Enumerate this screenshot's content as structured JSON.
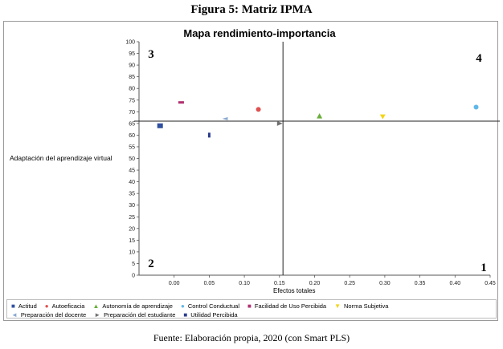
{
  "figure_title": "Figura 5: Matriz IPMA",
  "caption": "Fuente: Elaboración propia, 2020 (con Smart PLS)",
  "quadrants": [
    "3",
    "4",
    "2",
    "1"
  ],
  "chart_data": {
    "type": "scatter",
    "title": "Mapa rendimiento-importancia",
    "xlabel": "Efectos totales",
    "ylabel": "Adaptación del aprendizaje virtual",
    "xlim": [
      -0.05,
      0.45
    ],
    "ylim": [
      0,
      100
    ],
    "x_ticks": [
      "0.00",
      "0.05",
      "0.10",
      "0.15",
      "0.20",
      "0.25",
      "0.30",
      "0.35",
      "0.40",
      "0.45"
    ],
    "x_tick_values": [
      0.0,
      0.05,
      0.1,
      0.15,
      0.2,
      0.25,
      0.3,
      0.35,
      0.4,
      0.45
    ],
    "y_ticks": [
      0,
      5,
      10,
      15,
      20,
      25,
      30,
      35,
      40,
      45,
      50,
      55,
      60,
      65,
      70,
      75,
      80,
      85,
      90,
      95,
      100
    ],
    "reference_lines": {
      "x": 0.155,
      "y": 66
    },
    "series": [
      {
        "name": "Actitud",
        "x": -0.02,
        "y": 64,
        "color": "#2f4fa0",
        "marker": "square"
      },
      {
        "name": "Autoeficacia",
        "x": 0.12,
        "y": 71,
        "color": "#e05050",
        "marker": "circle"
      },
      {
        "name": "Autonomía de aprendizaje",
        "x": 0.207,
        "y": 68,
        "color": "#6aae3c",
        "marker": "triangle"
      },
      {
        "name": "Control Conductual",
        "x": 0.43,
        "y": 72,
        "color": "#60b8e8",
        "marker": "circle"
      },
      {
        "name": "Facilidad de Uso Percibida",
        "x": 0.01,
        "y": 74,
        "color": "#b03070",
        "marker": "dash"
      },
      {
        "name": "Norma Subjetiva",
        "x": 0.297,
        "y": 68,
        "color": "#f2d51a",
        "marker": "triangle-down"
      },
      {
        "name": "Preparación del docente",
        "x": 0.073,
        "y": 67,
        "color": "#8aa8d0",
        "marker": "arrow-left"
      },
      {
        "name": "Preparación del estudiante",
        "x": 0.15,
        "y": 65,
        "color": "#707070",
        "marker": "arrow-right"
      },
      {
        "name": "Utilidad Percibida",
        "x": 0.05,
        "y": 60,
        "color": "#2a3c8c",
        "marker": "bar"
      }
    ],
    "legend_markers": [
      "■",
      "●",
      "▲",
      "●",
      "■",
      "▼",
      "◄",
      "►",
      "■"
    ],
    "grid": false,
    "legend_position": "bottom"
  }
}
